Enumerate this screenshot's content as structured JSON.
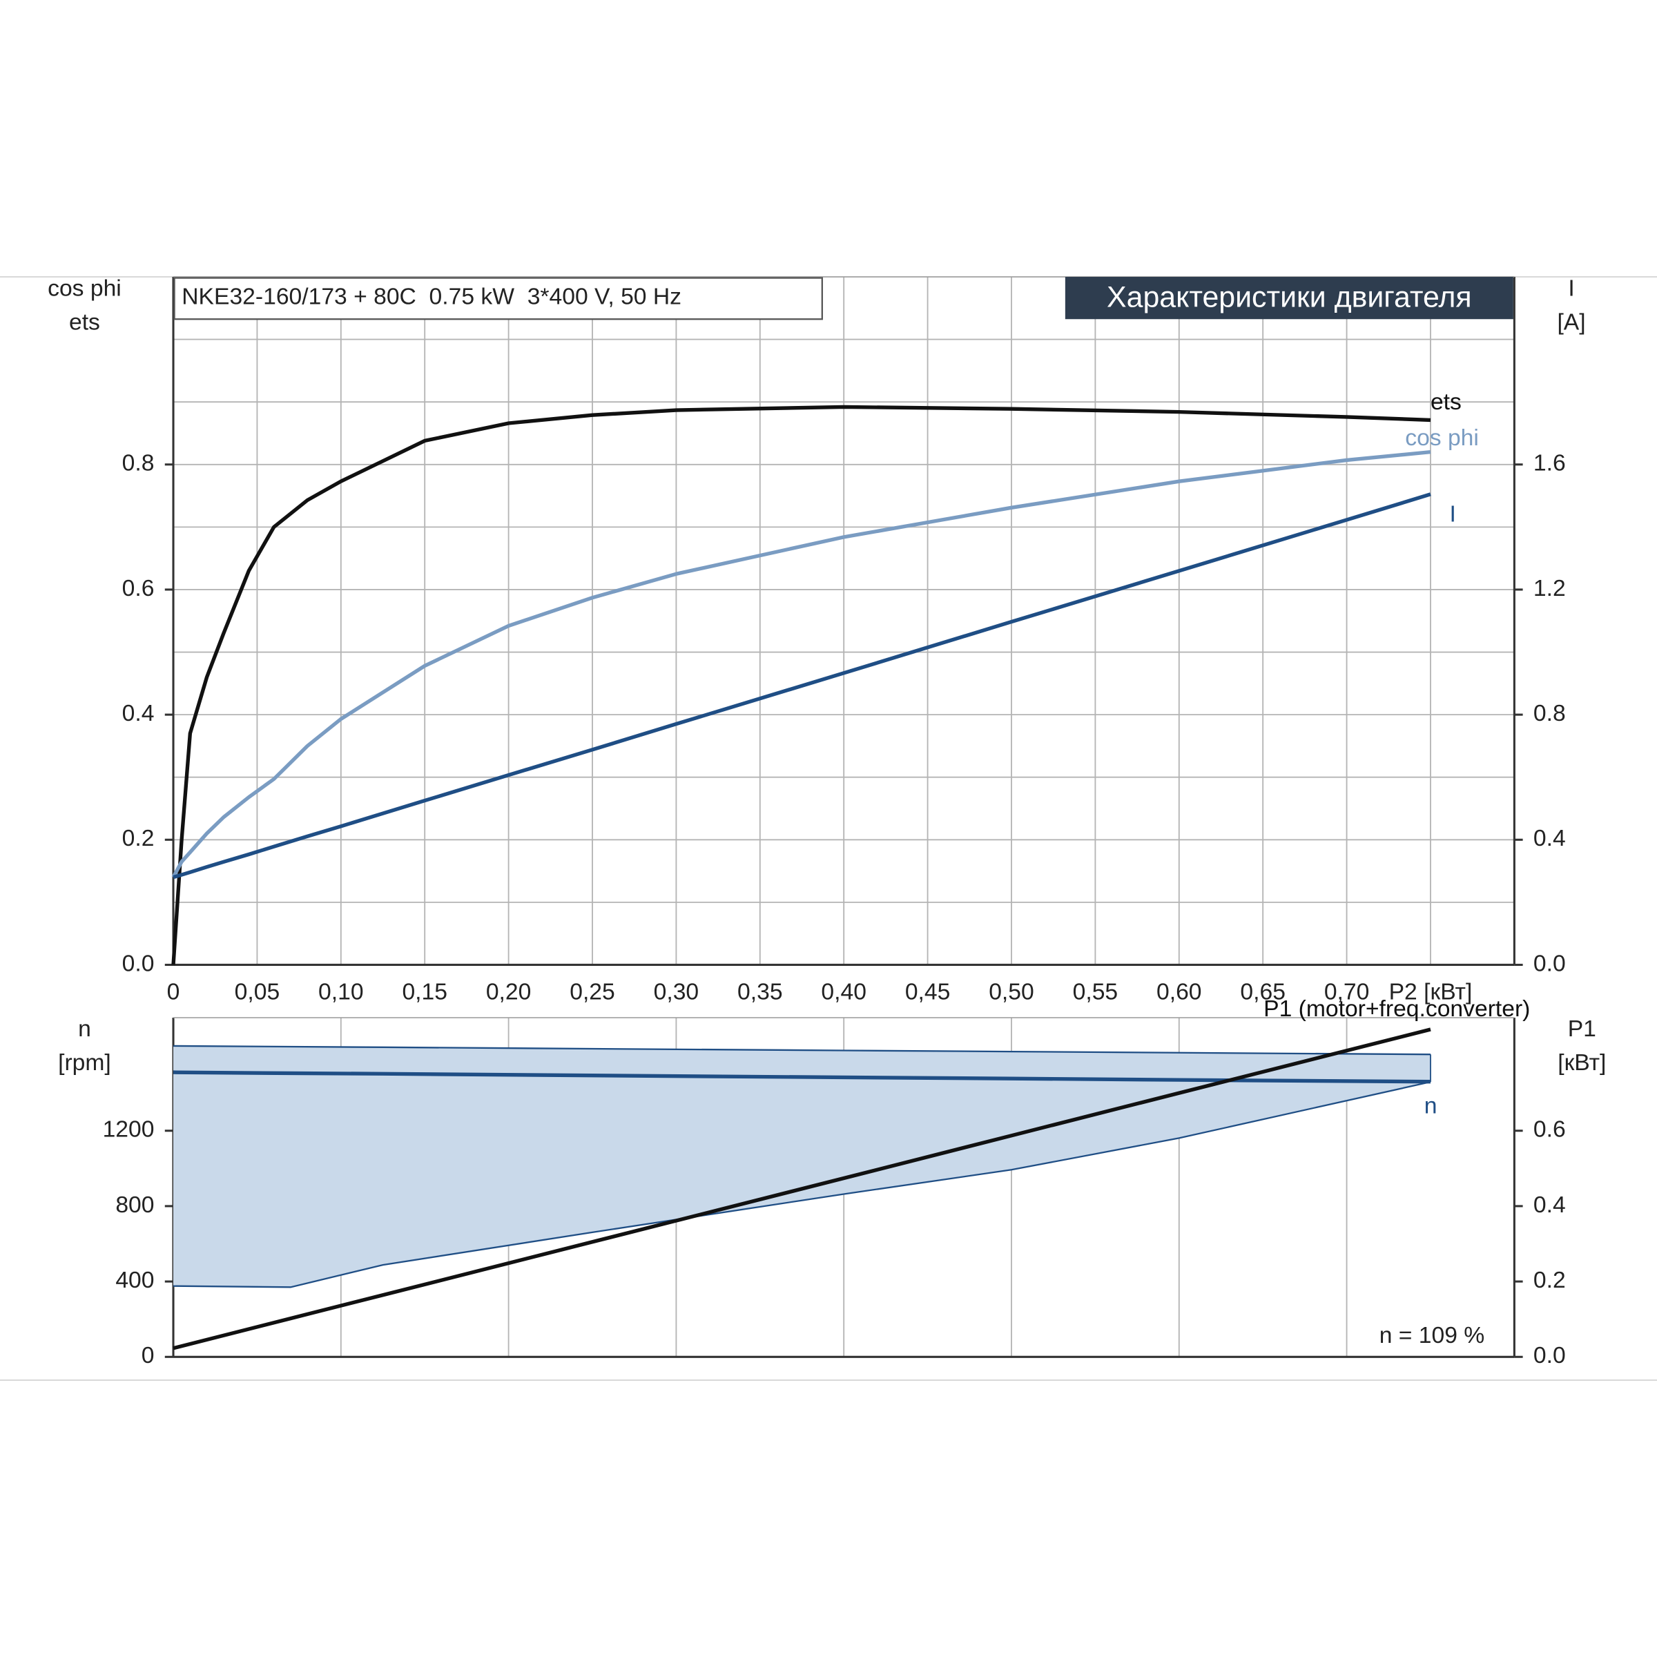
{
  "chart_data": [
    {
      "type": "line",
      "title": "Характеристики двигателя",
      "subtitle": "NKE32-160/173 + 80C  0.75 kW  3*400 V, 50 Hz",
      "y_label": [
        "cos phi",
        "ets"
      ],
      "y2_label": [
        "I",
        "[A]"
      ],
      "x": [
        0,
        0.005,
        0.01,
        0.02,
        0.03,
        0.045,
        0.06,
        0.08,
        0.1,
        0.15,
        0.2,
        0.25,
        0.3,
        0.4,
        0.5,
        0.6,
        0.7,
        0.75
      ],
      "xlim": [
        0,
        0.8
      ],
      "xticks": [
        0,
        {
          "value": 0.05,
          "label": "0,05"
        },
        {
          "value": 0.1,
          "label": "0,10"
        },
        {
          "value": 0.15,
          "label": "0,15"
        },
        {
          "value": 0.2,
          "label": "0,20"
        },
        {
          "value": 0.25,
          "label": "0,25"
        },
        {
          "value": 0.3,
          "label": "0,30"
        },
        {
          "value": 0.35,
          "label": "0,35"
        },
        {
          "value": 0.4,
          "label": "0,40"
        },
        {
          "value": 0.45,
          "label": "0,45"
        },
        {
          "value": 0.5,
          "label": "0,50"
        },
        {
          "value": 0.55,
          "label": "0,55"
        },
        {
          "value": 0.6,
          "label": "0,60"
        },
        {
          "value": 0.65,
          "label": "0,65"
        },
        {
          "value": 0.7,
          "label": "0,70"
        },
        {
          "value": 0.75,
          "label": "P2 [кВт]"
        }
      ],
      "ylim": [
        0,
        1.1
      ],
      "yticks": [
        {
          "value": 0,
          "label": "0.0"
        },
        0.2,
        0.4,
        0.6,
        0.8
      ],
      "ygrid": [
        0.1,
        0.2,
        0.3,
        0.4,
        0.5,
        0.6,
        0.7,
        0.8,
        0.9,
        1.0
      ],
      "y2lim": [
        0,
        2.2
      ],
      "y2ticks": [
        {
          "value": 0,
          "label": "0.0"
        },
        0.4,
        0.8,
        1.2,
        1.6
      ],
      "grid": true,
      "series": [
        {
          "name": "ets",
          "color": "#111111",
          "values": [
            0,
            0.2,
            0.37,
            0.46,
            0.53,
            0.63,
            0.7,
            0.743,
            0.773,
            0.838,
            0.866,
            0.879,
            0.887,
            0.892,
            0.889,
            0.884,
            0.876,
            0.871
          ]
        },
        {
          "name": "cos phi",
          "color": "#7a9cc2",
          "values": [
            0.14,
            0.165,
            0.18,
            0.21,
            0.236,
            0.268,
            0.297,
            0.35,
            0.393,
            0.478,
            0.542,
            0.587,
            0.625,
            0.684,
            0.731,
            0.773,
            0.807,
            0.82
          ]
        },
        {
          "name": "I",
          "color": "#1f4e85",
          "axis": "y2",
          "values": [
            0.28,
            0.288,
            0.296,
            0.313,
            0.329,
            0.353,
            0.378,
            0.411,
            0.443,
            0.525,
            0.607,
            0.688,
            0.77,
            0.933,
            1.097,
            1.26,
            1.423,
            1.505
          ]
        }
      ]
    },
    {
      "type": "line",
      "y_label": [
        "n",
        "[rpm]"
      ],
      "y2_label": [
        "P1",
        "[кВт]"
      ],
      "annotation": "n = 109 %",
      "x": [
        0,
        0.07,
        0.125,
        0.25,
        0.4,
        0.5,
        0.6,
        0.75
      ],
      "xlim": [
        0,
        0.8
      ],
      "xgrid": [
        0.1,
        0.2,
        0.3,
        0.4,
        0.5,
        0.6,
        0.7
      ],
      "ylim": [
        0,
        1800
      ],
      "yticks": [
        0,
        400,
        800,
        1200
      ],
      "y2lim": [
        0,
        0.9
      ],
      "y2ticks": [
        {
          "value": 0,
          "label": "0.0"
        },
        0.2,
        0.4,
        0.6
      ],
      "band": {
        "color": "#c9d9ea",
        "upper": [
          1650,
          1646,
          1643,
          1635,
          1626,
          1620,
          1614,
          1605
        ],
        "lower": [
          376,
          370,
          488,
          661,
          864,
          993,
          1161,
          1459
        ]
      },
      "series": [
        {
          "name": "n",
          "color": "#1f4e85",
          "values": [
            1510,
            1505,
            1502,
            1493,
            1483,
            1477,
            1470,
            1460
          ]
        },
        {
          "name": "P1 (motor+freq.converter)",
          "color": "#111111",
          "axis": "y2",
          "values": [
            0.023,
            0.102,
            0.164,
            0.305,
            0.474,
            0.587,
            0.7,
            0.869
          ]
        }
      ]
    }
  ]
}
